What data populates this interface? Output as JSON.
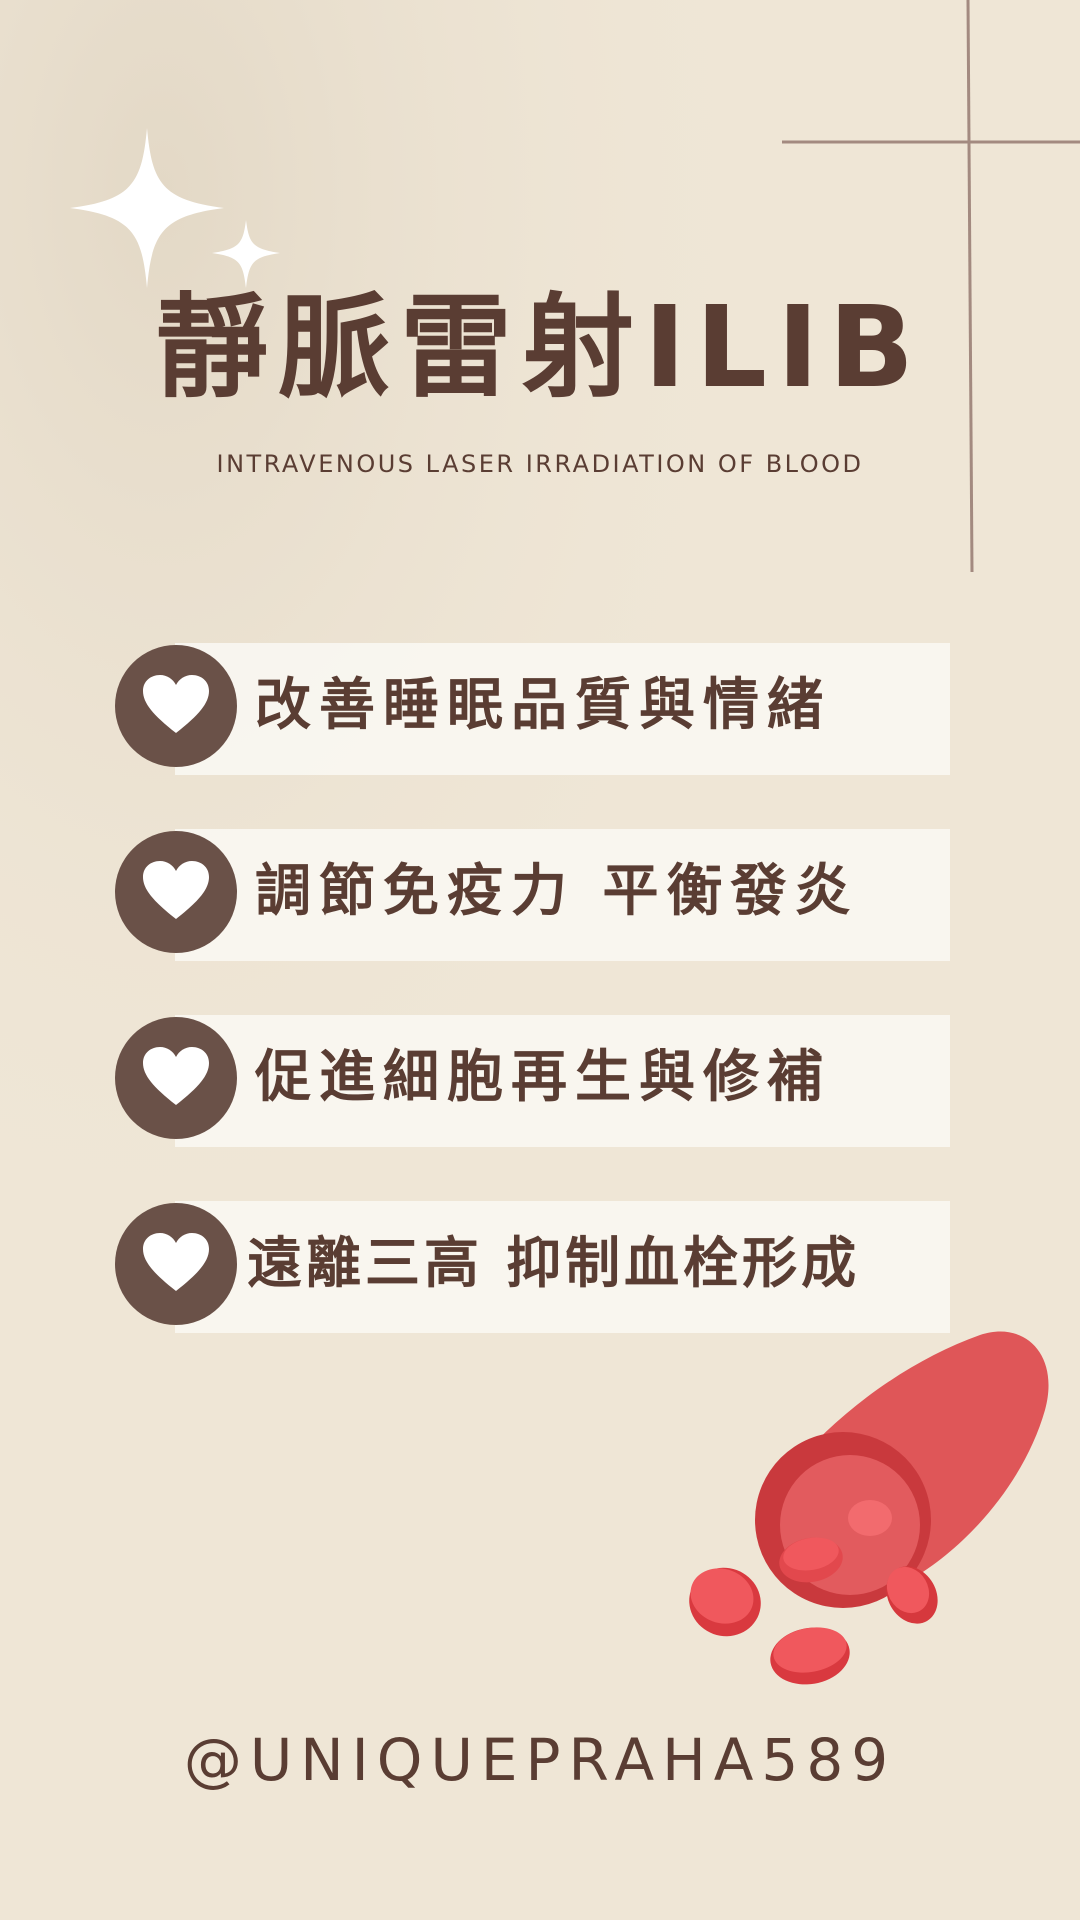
{
  "header": {
    "title": "靜脈雷射ILIB",
    "subtitle": "INTRAVENOUS LASER IRRADIATION OF BLOOD"
  },
  "benefits": [
    {
      "text": "改善睡眠品質與情緒",
      "icon": "heart-icon"
    },
    {
      "text": "調節免疫力 平衡發炎",
      "icon": "heart-icon"
    },
    {
      "text": "促進細胞再生與修補",
      "icon": "heart-icon"
    },
    {
      "text": "遠離三高 抑制血栓形成",
      "icon": "heart-icon"
    }
  ],
  "footer": {
    "handle": "@UNIQUEPRAHA589"
  },
  "colors": {
    "background": "#efe6d6",
    "text": "#5a3d33",
    "circle": "#6a5148",
    "bar": "#faf7f2",
    "blood_vessel": "#df5658",
    "blood_cell": "#f0585d"
  }
}
